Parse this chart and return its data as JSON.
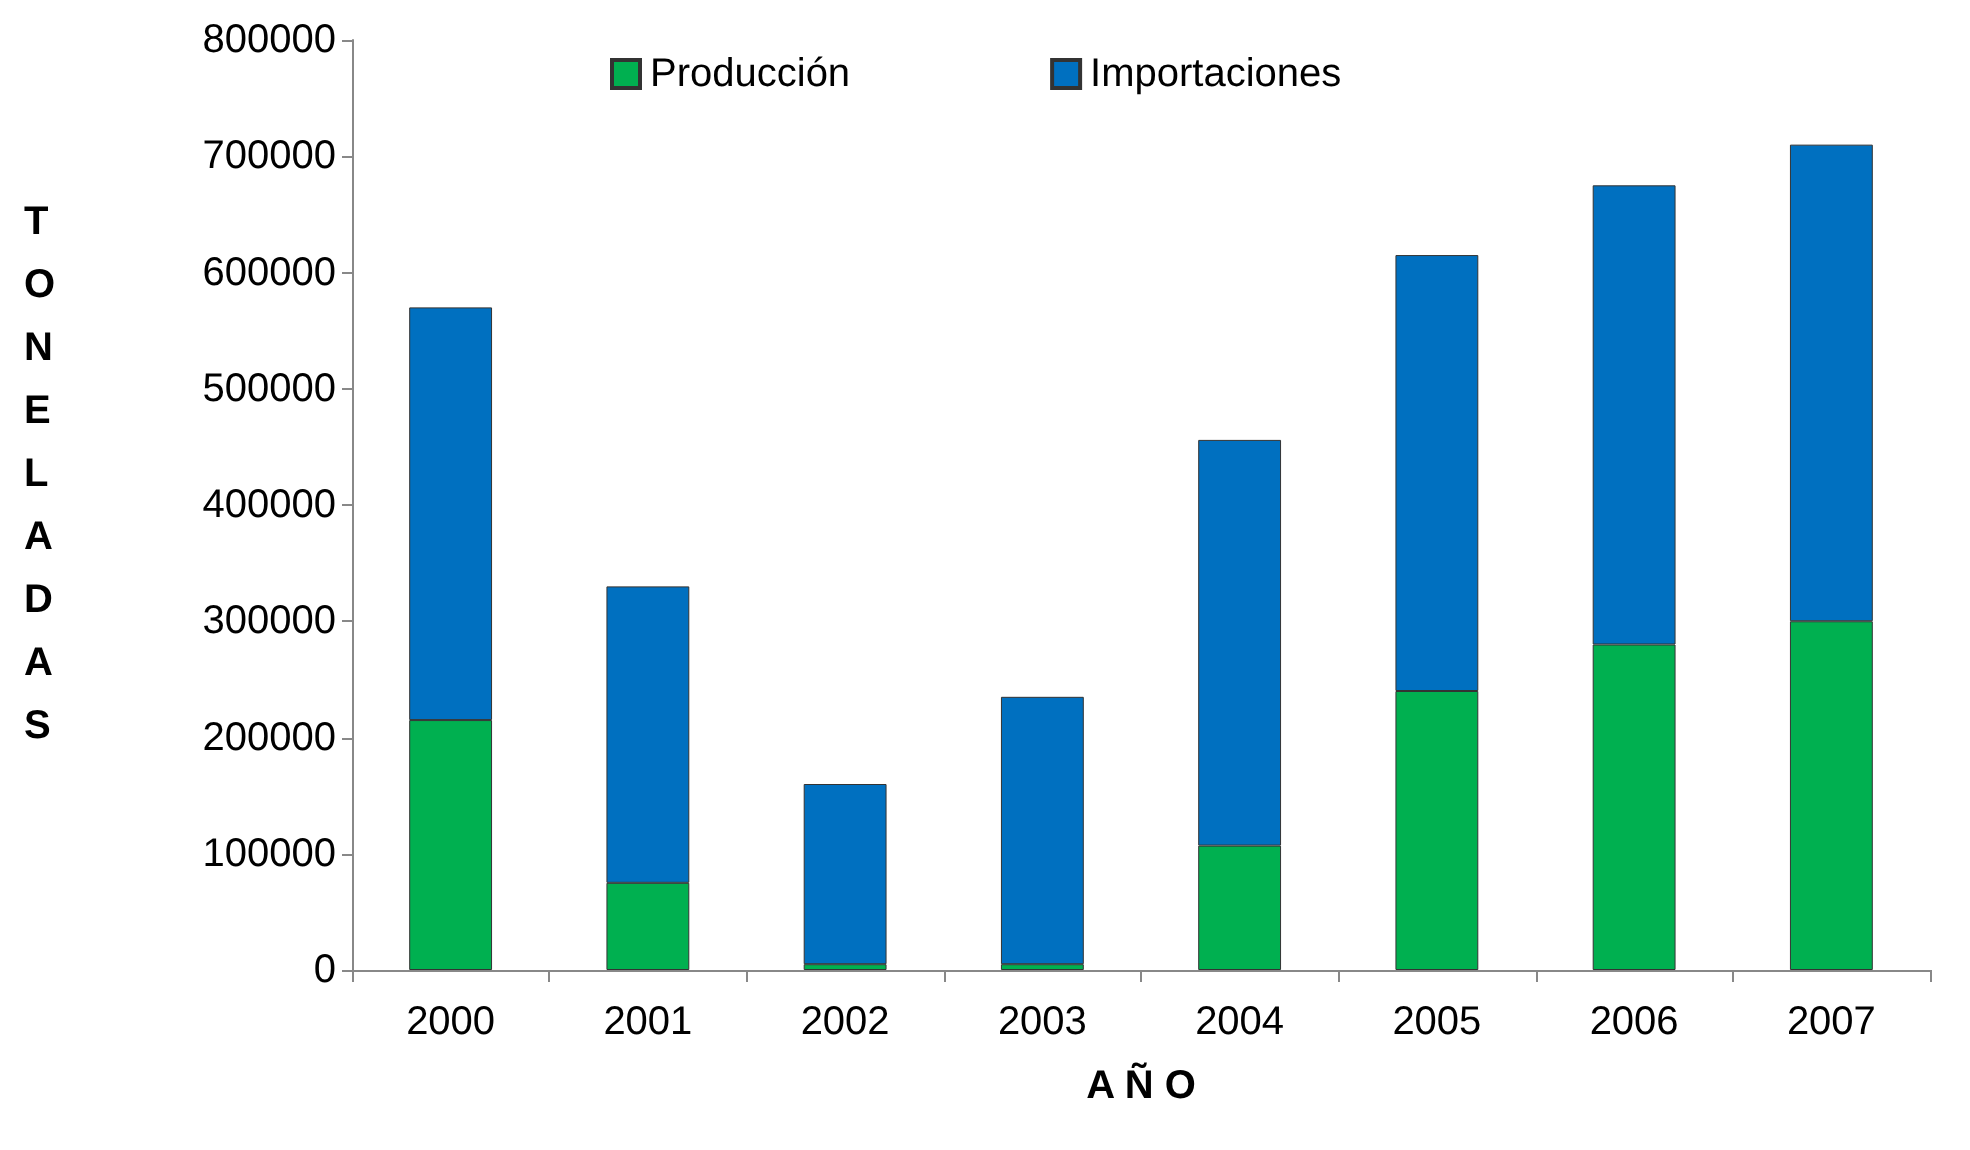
{
  "chart_data": {
    "type": "bar",
    "stacked": true,
    "xlabel": "A Ñ O",
    "ylabel": "TONELADAS",
    "categories": [
      "2000",
      "2001",
      "2002",
      "2003",
      "2004",
      "2005",
      "2006",
      "2007"
    ],
    "series": [
      {
        "name": "Producción",
        "color": "#00b050",
        "values": [
          215000,
          75000,
          5000,
          5000,
          107000,
          240000,
          280000,
          300000
        ]
      },
      {
        "name": "Importaciones",
        "color": "#0070c0",
        "values": [
          355000,
          255000,
          155000,
          230000,
          349000,
          375000,
          395000,
          410000
        ]
      }
    ],
    "ylim": [
      0,
      800000
    ],
    "yticks": [
      0,
      100000,
      200000,
      300000,
      400000,
      500000,
      600000,
      700000,
      800000
    ],
    "grid": false,
    "legend": "top"
  }
}
